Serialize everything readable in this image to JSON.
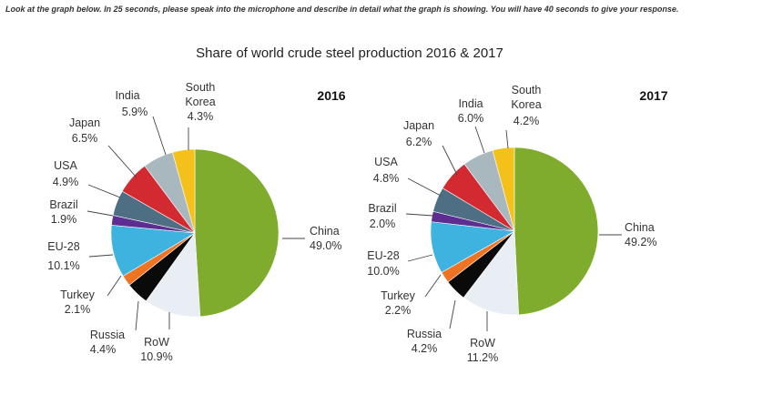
{
  "instruction": "Look at the graph below. In 25 seconds, please speak into the microphone and describe in detail what the graph is showing. You will have 40 seconds to give your response.",
  "chart_data": {
    "type": "pie",
    "title": "Share of world crude steel production 2016 & 2017",
    "charts": [
      {
        "year": "2016",
        "slices": [
          {
            "name": "China",
            "value": 49.0,
            "label": "49.0%",
            "color": "#7fac2c"
          },
          {
            "name": "RoW",
            "value": 10.9,
            "label": "10.9%",
            "color": "#e9edf4"
          },
          {
            "name": "Russia",
            "value": 4.4,
            "label": "4.4%",
            "color": "#0a0a0a"
          },
          {
            "name": "Turkey",
            "value": 2.1,
            "label": "2.1%",
            "color": "#ee7424"
          },
          {
            "name": "EU-28",
            "value": 10.1,
            "label": "10.1%",
            "color": "#3fb3e0"
          },
          {
            "name": "Brazil",
            "value": 1.9,
            "label": "1.9%",
            "color": "#5d2d91"
          },
          {
            "name": "USA",
            "value": 4.9,
            "label": "4.9%",
            "color": "#4e6e84"
          },
          {
            "name": "Japan",
            "value": 6.5,
            "label": "6.5%",
            "color": "#d22a30"
          },
          {
            "name": "India",
            "value": 5.9,
            "label": "5.9%",
            "color": "#a9b7bf"
          },
          {
            "name": "South Korea",
            "value": 4.3,
            "label": "4.3%",
            "color": "#f4c01a"
          }
        ]
      },
      {
        "year": "2017",
        "slices": [
          {
            "name": "China",
            "value": 49.2,
            "label": "49.2%",
            "color": "#7fac2c"
          },
          {
            "name": "RoW",
            "value": 11.2,
            "label": "11.2%",
            "color": "#e9edf4"
          },
          {
            "name": "Russia",
            "value": 4.2,
            "label": "4.2%",
            "color": "#0a0a0a"
          },
          {
            "name": "Turkey",
            "value": 2.2,
            "label": "2.2%",
            "color": "#ee7424"
          },
          {
            "name": "EU-28",
            "value": 10.0,
            "label": "10.0%",
            "color": "#3fb3e0"
          },
          {
            "name": "Brazil",
            "value": 2.0,
            "label": "2.0%",
            "color": "#5d2d91"
          },
          {
            "name": "USA",
            "value": 4.8,
            "label": "4.8%",
            "color": "#4e6e84"
          },
          {
            "name": "Japan",
            "value": 6.2,
            "label": "6.2%",
            "color": "#d22a30"
          },
          {
            "name": "India",
            "value": 6.0,
            "label": "6.0%",
            "color": "#a9b7bf"
          },
          {
            "name": "South Korea",
            "value": 4.2,
            "label": "4.2%",
            "color": "#f4c01a"
          }
        ]
      }
    ]
  }
}
